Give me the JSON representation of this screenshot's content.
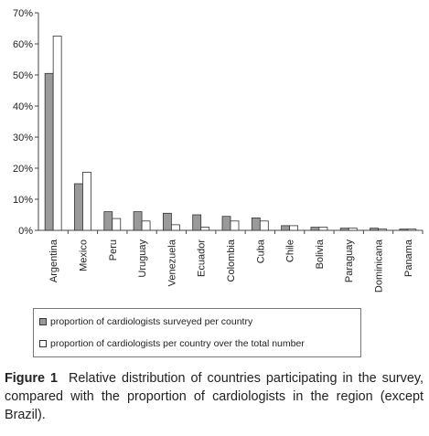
{
  "chart_data": {
    "type": "bar",
    "categories": [
      "Argentina",
      "Mexico",
      "Peru",
      "Uruguay",
      "Venezuela",
      "Ecuador",
      "Colombia",
      "Cuba",
      "Chile",
      "Bolivia",
      "Paraguay",
      "Dominicana",
      "Panama"
    ],
    "series": [
      {
        "name": "proportion of cardiologists surveyed per country",
        "color": "#9a9a9a",
        "values": [
          50.5,
          15,
          6,
          6,
          5.5,
          5,
          4.5,
          4,
          1.5,
          1,
          0.7,
          0.7,
          0.4
        ]
      },
      {
        "name": "proportion of cardiologists per country over the total number",
        "color": "#ffffff",
        "values": [
          62.5,
          18.7,
          3.8,
          3,
          1.8,
          1,
          3,
          3,
          1.5,
          1,
          0.7,
          0.4,
          0.4
        ]
      }
    ],
    "ylim": [
      0,
      70
    ],
    "yticks": [
      "0%",
      "10%",
      "20%",
      "30%",
      "40%",
      "50%",
      "60%",
      "70%"
    ],
    "ytick_values": [
      0,
      10,
      20,
      30,
      40,
      50,
      60,
      70
    ],
    "grid": false,
    "legend_position": "bottom"
  },
  "caption": {
    "label": "Figure 1",
    "text": "Relative distribution of countries participating in the survey, compared with the proportion of cardiologists in the region (except Brazil)."
  }
}
